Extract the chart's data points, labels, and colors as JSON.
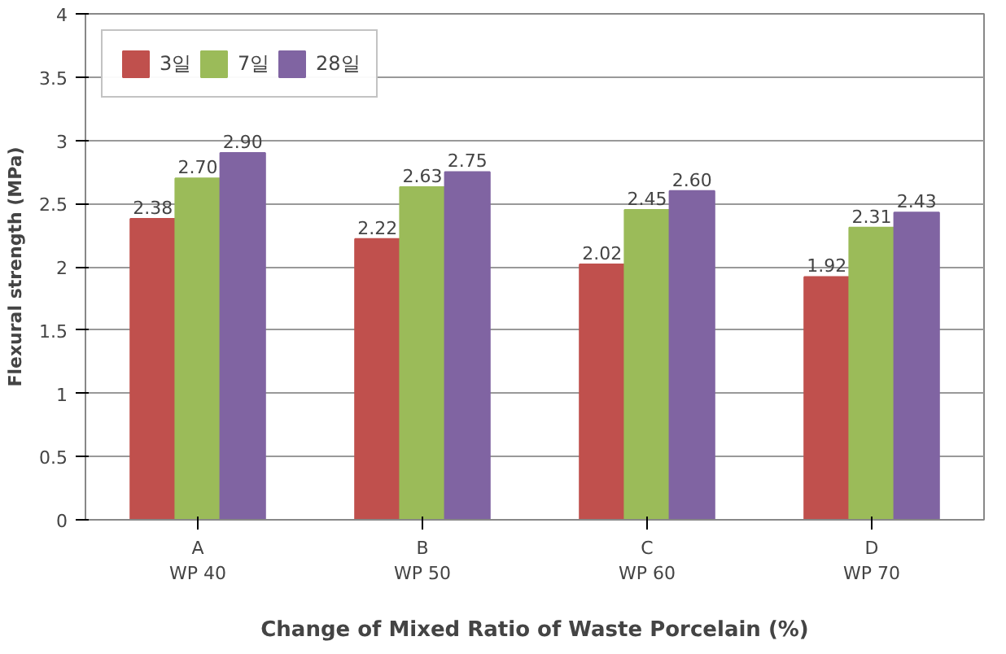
{
  "chart_data": {
    "type": "bar",
    "xlabel": "Change of Mixed Ratio of Waste Porcelain (%)",
    "ylabel": "Flexural strength (MPa)",
    "categories": [
      "A\nWP 40",
      "B\nWP 50",
      "C\nWP 60",
      "D\nWP 70"
    ],
    "series": [
      {
        "name": "3일",
        "color": "#c0504d",
        "values": [
          2.38,
          2.22,
          2.02,
          1.92
        ],
        "value_labels": [
          "2.38",
          "2.22",
          "2.02",
          "1.92"
        ]
      },
      {
        "name": "7일",
        "color": "#9bbb59",
        "values": [
          2.7,
          2.63,
          2.45,
          2.31
        ],
        "value_labels": [
          "2.70",
          "2.63",
          "2.45",
          "2.31"
        ]
      },
      {
        "name": "28일",
        "color": "#8064a2",
        "values": [
          2.9,
          2.75,
          2.6,
          2.43
        ],
        "value_labels": [
          "2.90",
          "2.75",
          "2.60",
          "2.43"
        ]
      }
    ],
    "ylim": [
      0,
      4
    ],
    "yticks": [
      0,
      0.5,
      1,
      1.5,
      2,
      2.5,
      3,
      3.5,
      4
    ],
    "grid": "y",
    "legend": "top left"
  }
}
